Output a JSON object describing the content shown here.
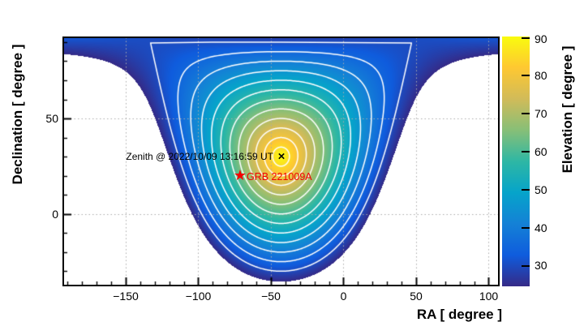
{
  "axes": {
    "x": {
      "title": "RA [ degree ]",
      "tick_labels": [
        "−150",
        "−100",
        "−50",
        "0",
        "50",
        "100"
      ]
    },
    "y": {
      "title": "Declination [ degree ]",
      "tick_labels": [
        "50",
        "0"
      ]
    }
  },
  "colorbar": {
    "title": "Elevation [ degree ]",
    "tick_labels": [
      "90",
      "80",
      "70",
      "60",
      "50",
      "40",
      "30"
    ]
  },
  "annotations": {
    "zenith": {
      "text": "Zenith @ 2022/10/09 13:16:59 UT",
      "marker": "×",
      "color": "#000000"
    },
    "grb": {
      "text": "GRB 221009A",
      "marker": "★",
      "color": "#f40000"
    }
  },
  "chart_data": {
    "type": "heatmap",
    "title": "",
    "xlabel": "RA [ degree ]",
    "ylabel": "Declination [ degree ]",
    "zlabel": "Elevation [ degree ]",
    "x_range": [
      -193,
      107
    ],
    "y_range": [
      -37.5,
      92.5
    ],
    "z_range": [
      24.5,
      90
    ],
    "x_major_ticks": [
      -150,
      -100,
      -50,
      0,
      50,
      100
    ],
    "x_minor_step": 10,
    "y_major_ticks": [
      0,
      50
    ],
    "y_minor_step": 10,
    "z_ticks": [
      90,
      80,
      70,
      60,
      50,
      40,
      30
    ],
    "grid": "dotted gridlines at major ticks",
    "model": "elevation(ra,dec) = asin( sin(zenith.dec)*sin(dec) + cos(zenith.dec)*cos(dec)*cos(ra - zenith.ra) ), degrees",
    "zenith": {
      "ra": -43.0,
      "dec": 30.0,
      "label": "Zenith @ 2022/10/09 13:16:59 UT"
    },
    "points": [
      {
        "name": "GRB 221009A",
        "ra": -71.9,
        "dec": 19.5,
        "marker": "star",
        "color": "#f40000"
      }
    ],
    "mask_below": 24.5,
    "contour_levels": [
      30,
      35,
      40,
      45,
      50,
      55,
      60,
      65,
      70,
      75,
      80,
      85
    ],
    "contour_color": "#ffffff",
    "colormap_stops": [
      "#352A87",
      "#0F5CDD",
      "#1481D6",
      "#06A4CA",
      "#2EB7A4",
      "#87BF77",
      "#D1BB59",
      "#FEC832",
      "#F9FB0E"
    ],
    "legend": "none"
  }
}
